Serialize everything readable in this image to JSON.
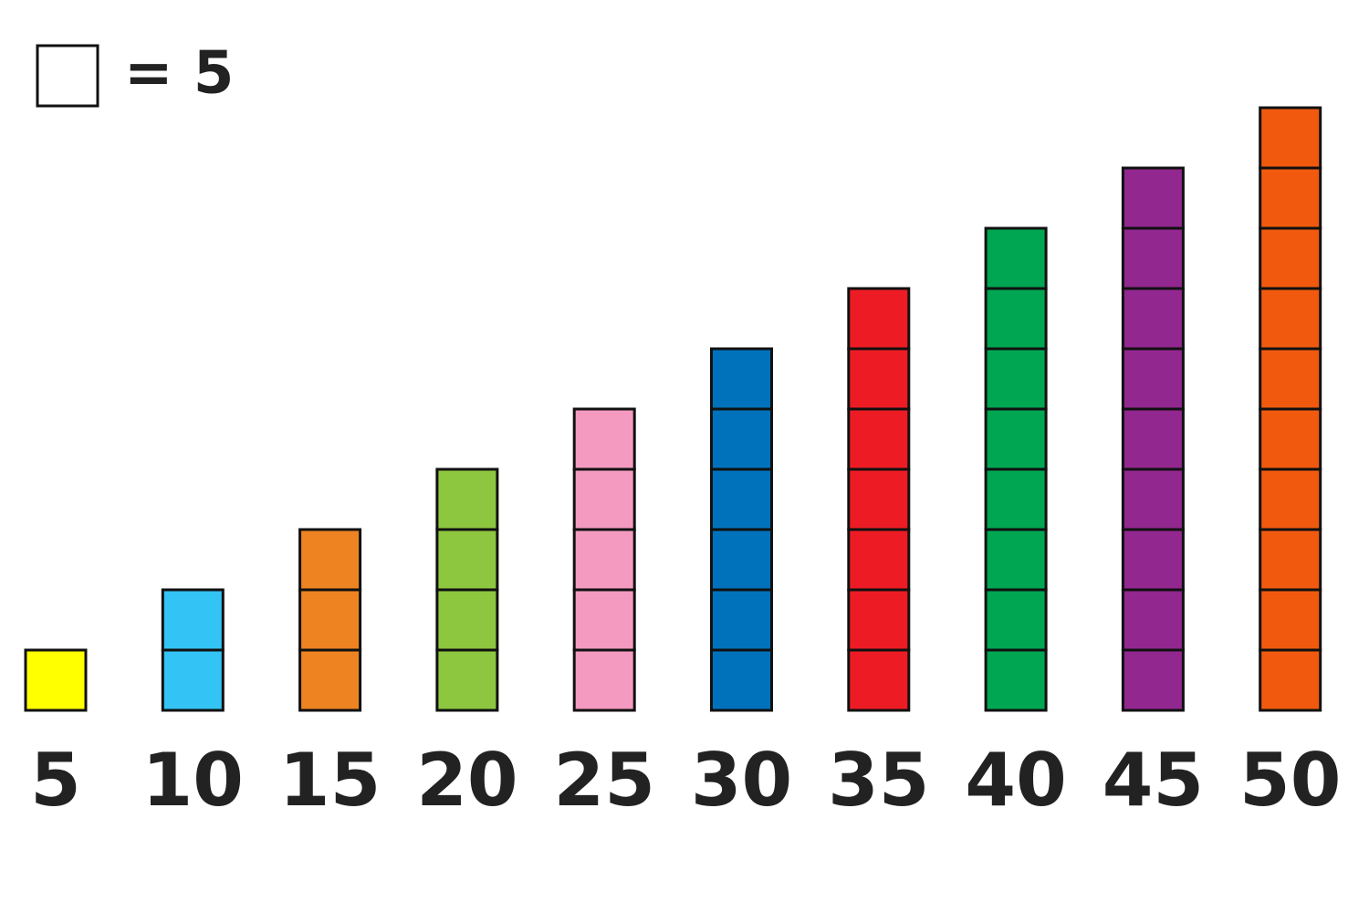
{
  "chart_data": {
    "type": "pictograph",
    "key": {
      "value": 5,
      "label": "= 5"
    },
    "values": [
      5,
      10,
      15,
      20,
      25,
      30,
      35,
      40,
      45,
      50
    ],
    "colors": [
      "#ffff00",
      "#33c4f5",
      "#ee8322",
      "#8dc63f",
      "#f49ac1",
      "#0072bc",
      "#ed1c24",
      "#00a651",
      "#92278f",
      "#f15a0e"
    ]
  }
}
